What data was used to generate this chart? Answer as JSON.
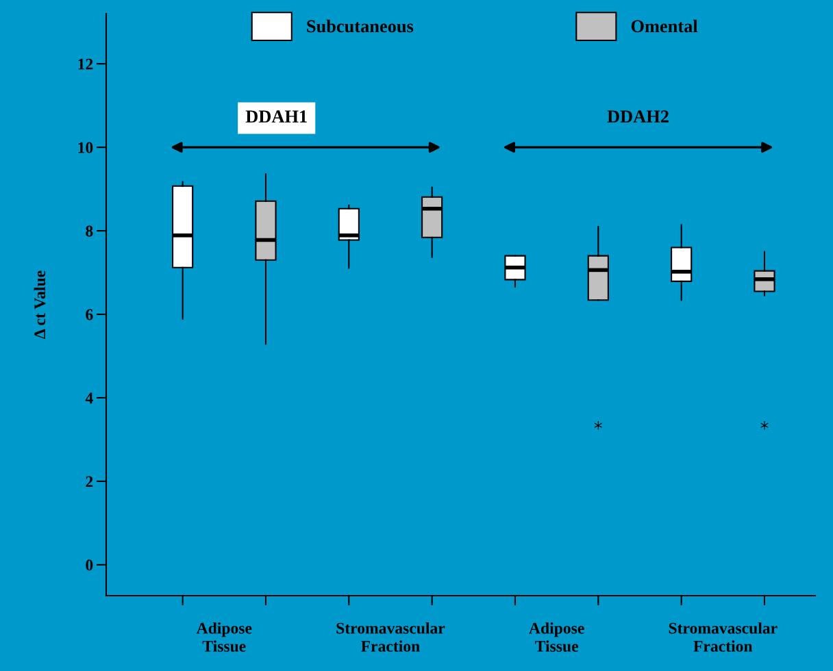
{
  "chart_data": {
    "type": "box",
    "ylabel": "Δ ct Value",
    "categories": [
      "Adipose Tissue",
      "Stromavascular Fraction",
      "Adipose Tissue",
      "Stromavascular Fraction"
    ],
    "series": [
      {
        "name": "Subcutaneous",
        "color": "#ffffff",
        "boxes": [
          {
            "low": 5.89,
            "q1": 7.12,
            "median": 7.89,
            "q3": 9.07,
            "high": 9.17
          },
          {
            "low": 7.11,
            "q1": 7.78,
            "median": 7.89,
            "q3": 8.53,
            "high": 8.61
          },
          {
            "low": 6.66,
            "q1": 6.83,
            "median": 7.12,
            "q3": 7.4,
            "high": 7.4
          },
          {
            "low": 6.34,
            "q1": 6.79,
            "median": 7.02,
            "q3": 7.6,
            "high": 8.14
          }
        ]
      },
      {
        "name": "Omental",
        "color": "#c0c0c0",
        "boxes": [
          {
            "low": 5.29,
            "q1": 7.3,
            "median": 7.78,
            "q3": 8.71,
            "high": 9.36
          },
          {
            "low": 7.37,
            "q1": 7.84,
            "median": 8.53,
            "q3": 8.81,
            "high": 9.04
          },
          {
            "low": 6.34,
            "q1": 6.34,
            "median": 7.06,
            "q3": 7.4,
            "high": 8.1,
            "outliers": [
              3.34
            ]
          },
          {
            "low": 6.45,
            "q1": 6.55,
            "median": 6.84,
            "q3": 7.04,
            "high": 7.5,
            "outliers": [
              3.34
            ]
          }
        ]
      }
    ],
    "ylim": [
      -0.74,
      13.2
    ],
    "yticks": [
      0,
      2,
      4,
      6,
      8,
      10,
      12
    ],
    "legend": "top",
    "grid": false,
    "annotations": [
      "DDAH1",
      "DDAH2"
    ]
  }
}
